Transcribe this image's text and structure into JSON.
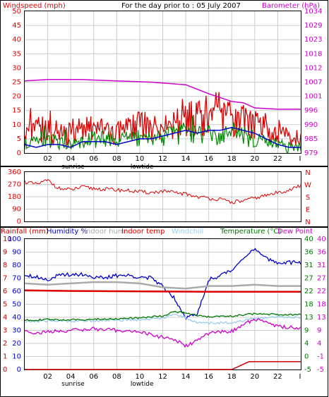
{
  "colors": {
    "windspeed": "#dd0000",
    "barometer": "#cc00cc",
    "avg_wind": "#0000cc",
    "gust_green": "#008800",
    "humidity": "#0000cc",
    "indoor_hum": "#aaaaaa",
    "indoor_temp": "#dd0000",
    "windchill": "#99ccee",
    "temperature": "#007700",
    "dew_point": "#cc00cc",
    "rainfall": "#cc0000"
  },
  "header": {
    "windspeed_label": "Windspeed (mph)",
    "title": "For the day prior to : 05 July 2007",
    "barometer_label": "Barometer (hPa)"
  },
  "legend2": {
    "rainfall": "Rainfall (mm)",
    "humidity": "Humidity %",
    "indoor_hum": "Indoor hum",
    "indoor_temp": "Indoor temp",
    "windchill": "Windchill",
    "temperature": "Temperature (°C)",
    "dew_point": "Dew Point"
  },
  "chart_data": [
    {
      "type": "line",
      "title": "For the day prior to : 05 July 2007",
      "ylabel": "Windspeed (mph)",
      "y2label": "Barometer (hPa)",
      "ylim": [
        0,
        50
      ],
      "y2lim": [
        979,
        1034
      ],
      "yticks": [
        "0",
        "5",
        "10",
        "15",
        "20",
        "25",
        "30",
        "35",
        "40",
        "45",
        "50"
      ],
      "y2ticks": [
        "979",
        "985",
        "990",
        "996",
        "1001",
        "1007",
        "1012",
        "1018",
        "1023",
        "1029",
        "1034"
      ],
      "xlim": [
        0,
        24
      ],
      "xticks": [
        "02",
        "04",
        "06",
        "08",
        "10",
        "12",
        "14",
        "16",
        "18",
        "20",
        "22"
      ],
      "x_end_label": "I",
      "annotations": [
        {
          "text": "sunrise",
          "x": 4
        },
        {
          "text": "lowtide",
          "x": 10
        }
      ],
      "series": [
        {
          "name": "Windspeed (mph)",
          "axis": "left",
          "kind": "gust",
          "x": [
            0,
            1,
            2,
            3,
            4,
            5,
            6,
            7,
            8,
            9,
            10,
            11,
            12,
            13,
            14,
            15,
            16,
            17,
            18,
            19,
            20,
            21,
            22,
            23,
            24
          ],
          "y": [
            8,
            11,
            9,
            7,
            9,
            10,
            10,
            9,
            9,
            10,
            12,
            11,
            10,
            12,
            15,
            16,
            14,
            15,
            16,
            14,
            13,
            11,
            9,
            7,
            6
          ]
        },
        {
          "name": "Average wind",
          "axis": "left",
          "kind": "line",
          "x": [
            0,
            1,
            2,
            3,
            4,
            5,
            6,
            7,
            8,
            9,
            10,
            11,
            12,
            13,
            14,
            15,
            16,
            17,
            18,
            19,
            20,
            21,
            22,
            23,
            24
          ],
          "y": [
            3,
            2,
            3,
            3,
            2,
            4,
            4,
            4,
            3,
            4,
            5,
            5,
            6,
            7,
            8,
            7,
            8,
            8,
            9,
            8,
            7,
            5,
            3,
            2,
            2
          ]
        },
        {
          "name": "Gust (green)",
          "axis": "left",
          "kind": "gust",
          "x": [
            0,
            1,
            2,
            3,
            4,
            5,
            6,
            7,
            8,
            9,
            10,
            11,
            12,
            13,
            14,
            15,
            16,
            17,
            18,
            19,
            20,
            21,
            22,
            23,
            24
          ],
          "y": [
            3,
            4,
            5,
            4,
            3,
            5,
            6,
            6,
            5,
            6,
            7,
            6,
            7,
            8,
            9,
            8,
            8,
            8,
            7,
            7,
            6,
            5,
            3,
            2,
            2
          ]
        },
        {
          "name": "Barometer (hPa)",
          "axis": "right",
          "kind": "line",
          "x": [
            0,
            2,
            5,
            8,
            11,
            14,
            16,
            18,
            19,
            20,
            22,
            24
          ],
          "y": [
            1007.0,
            1007.5,
            1007.5,
            1007.0,
            1006.5,
            1005.5,
            1002.0,
            999.0,
            998.5,
            996.5,
            996.0,
            996.0
          ]
        }
      ]
    },
    {
      "type": "scatter",
      "ylabel": "Wind direction",
      "ylim": [
        0,
        360
      ],
      "yticks": [
        "0",
        "90",
        "180",
        "270",
        "360"
      ],
      "y2ticks": [
        "N",
        "W",
        "S",
        "E",
        "N"
      ],
      "xlim": [
        0,
        24
      ],
      "series": [
        {
          "name": "Wind direction",
          "x": [
            0,
            1,
            2,
            3,
            4,
            5,
            6,
            7,
            8,
            9,
            10,
            11,
            12,
            13,
            14,
            15,
            16,
            17,
            18,
            19,
            20,
            21,
            22,
            23,
            24
          ],
          "y": [
            290,
            270,
            300,
            240,
            230,
            250,
            240,
            235,
            230,
            225,
            215,
            210,
            220,
            210,
            200,
            180,
            170,
            160,
            140,
            150,
            170,
            190,
            210,
            230,
            260
          ]
        }
      ]
    },
    {
      "type": "line",
      "ylabel": "Rainfall (mm)",
      "ylim": [
        0,
        40
      ],
      "xlim": [
        0,
        24
      ],
      "xticks": [
        "02",
        "04",
        "06",
        "08",
        "10",
        "12",
        "14",
        "16",
        "18",
        "20",
        "22"
      ],
      "x_end_label": "I",
      "annotations": [
        {
          "text": "sunrise",
          "x": 4
        },
        {
          "text": "lowtide",
          "x": 10
        }
      ],
      "axes_left": [
        {
          "name": "rainfall",
          "ticks": [
            "0",
            "1",
            "2",
            "3",
            "4",
            "5",
            "6",
            "7",
            "8",
            "9",
            "10"
          ]
        },
        {
          "name": "humidity",
          "ticks": [
            "0",
            "10",
            "20",
            "30",
            "40",
            "50",
            "60",
            "70",
            "80",
            "90",
            "100"
          ]
        }
      ],
      "axes_right": [
        {
          "name": "temperature",
          "ticks": [
            "-5",
            "0",
            "4",
            "9",
            "13",
            "18",
            "22",
            "27",
            "31",
            "36",
            "40"
          ]
        },
        {
          "name": "dew_point",
          "ticks": [
            "-5",
            "-1",
            "4",
            "9",
            "13",
            "18",
            "22",
            "27",
            "31",
            "36",
            "40"
          ]
        }
      ],
      "series": [
        {
          "name": "Humidity %",
          "scale": [
            0,
            100
          ],
          "x": [
            0,
            1,
            2,
            3,
            4,
            5,
            6,
            7,
            8,
            9,
            10,
            11,
            12,
            13,
            14,
            15,
            16,
            17,
            18,
            19,
            20,
            21,
            22,
            23,
            24
          ],
          "y": [
            73,
            71,
            69,
            72,
            73,
            73,
            71,
            70,
            72,
            72,
            71,
            70,
            64,
            55,
            40,
            42,
            69,
            72,
            76,
            86,
            92,
            85,
            82,
            82,
            82
          ]
        },
        {
          "name": "Indoor hum",
          "scale": [
            0,
            100
          ],
          "x": [
            0,
            2,
            4,
            6,
            8,
            10,
            12,
            14,
            16,
            18,
            20,
            22,
            24
          ],
          "y": [
            66,
            65,
            66,
            67,
            67,
            66,
            63,
            62,
            64,
            64,
            65,
            64,
            64
          ]
        },
        {
          "name": "Indoor temp",
          "scale": [
            -5,
            40
          ],
          "x": [
            0,
            4,
            8,
            12,
            16,
            20,
            24
          ],
          "y": [
            22.3,
            22.1,
            22.0,
            21.9,
            21.8,
            21.8,
            21.8
          ]
        },
        {
          "name": "Windchill",
          "scale": [
            -5,
            40
          ],
          "x": [
            0,
            2,
            4,
            6,
            8,
            10,
            12,
            13,
            14,
            15,
            16,
            18,
            20,
            22,
            24
          ],
          "y": [
            11.5,
            11.8,
            11.7,
            11.9,
            12.0,
            12.2,
            12.8,
            14.0,
            13.0,
            11.0,
            11.0,
            11.2,
            12.5,
            13.2,
            13.0
          ]
        },
        {
          "name": "Temperature (°C)",
          "scale": [
            -5,
            40
          ],
          "x": [
            0,
            2,
            4,
            6,
            8,
            10,
            12,
            13,
            14,
            15,
            16,
            18,
            20,
            22,
            24
          ],
          "y": [
            12.0,
            12.2,
            12.1,
            12.3,
            12.5,
            12.8,
            13.5,
            15.0,
            14.5,
            13.5,
            13.2,
            13.4,
            14.2,
            14.0,
            14.0
          ]
        },
        {
          "name": "Dew Point",
          "scale": [
            -5,
            40
          ],
          "x": [
            0,
            1,
            2,
            4,
            6,
            8,
            10,
            11,
            12,
            13,
            14,
            15,
            16,
            17,
            18,
            20,
            22,
            23,
            24
          ],
          "y": [
            8.5,
            7.5,
            8.0,
            8.5,
            9.0,
            8.5,
            8.0,
            7.0,
            6.0,
            5.5,
            3.0,
            5.0,
            7.5,
            8.0,
            8.2,
            12.5,
            10.0,
            9.5,
            9.5
          ]
        },
        {
          "name": "Rainfall (mm)",
          "scale": [
            0,
            10
          ],
          "x": [
            0,
            18,
            19.5,
            24
          ],
          "y": [
            0,
            0,
            0.6,
            0.6
          ]
        }
      ]
    }
  ]
}
